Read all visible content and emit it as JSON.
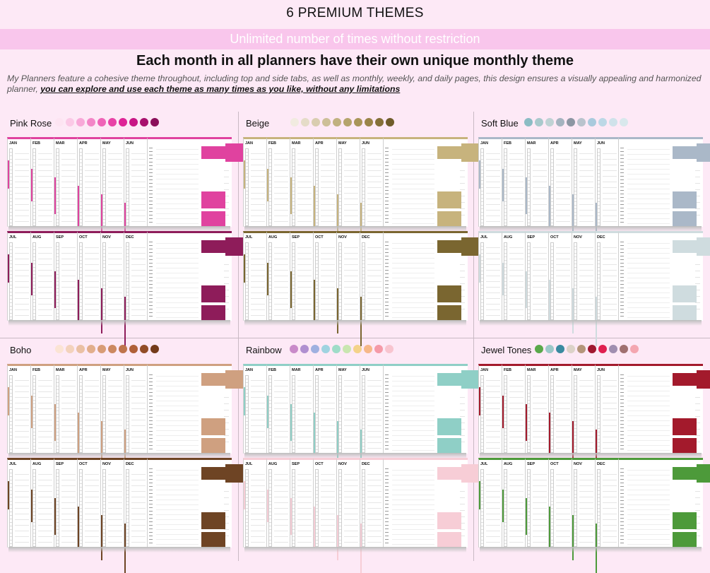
{
  "header": {
    "title": "6 PREMIUM THEMES",
    "banner": "Unlimited number of times without restriction",
    "headline": "Each month in all planners have their own unique monthly theme",
    "description": "My Planners feature a cohesive theme throughout, including top and side tabs, as well as monthly, weekly, and daily pages, this design ensures a visually appealing and harmonized planner,",
    "description_emphasis": "you can explore and use each theme as many times as you like, without any limitations"
  },
  "row_top_months": [
    "JAN",
    "FEB",
    "MAR",
    "APR",
    "MAY",
    "JUN"
  ],
  "row_bottom_months": [
    "JUL",
    "AUG",
    "SEP",
    "OCT",
    "NOV",
    "DEC"
  ],
  "themes": [
    {
      "name": "Pink Rose",
      "accent_top": "#e0429f",
      "accent_bottom": "#8e1c5a",
      "swatches": [
        "#fde4f2",
        "#fbc9e6",
        "#f8a8d8",
        "#f385c7",
        "#ef63b7",
        "#e842a6",
        "#de2396",
        "#c81585",
        "#a8106d",
        "#8a0e59"
      ]
    },
    {
      "name": "Beige",
      "accent_top": "#c7b37d",
      "accent_bottom": "#7a6630",
      "swatches": [
        "#f1ebe0",
        "#e5dcc8",
        "#d9cdb0",
        "#cdbf98",
        "#c1b180",
        "#b5a46c",
        "#a99558",
        "#9a8448",
        "#857038",
        "#6f5c2a"
      ]
    },
    {
      "name": "Soft Blue",
      "accent_top": "#aab8c8",
      "accent_bottom": "#cfdcdf",
      "swatches": [
        "#8bbcc4",
        "#a9c9cc",
        "#bfd2d4",
        "#a4b3bf",
        "#8c96a3",
        "#b9c3cd",
        "#a9cadd",
        "#bcd8e6",
        "#cfe2ea",
        "#d8e8ec"
      ]
    },
    {
      "name": "Boho",
      "accent_top": "#cfa080",
      "accent_bottom": "#6e4424",
      "swatches": [
        "#fbe4d4",
        "#f3d2bc",
        "#eac0a4",
        "#e2ae8c",
        "#d89c76",
        "#cc8860",
        "#bf744c",
        "#b06038",
        "#924c26",
        "#743a1a"
      ]
    },
    {
      "name": "Rainbow",
      "accent_top": "#8fcfc6",
      "accent_bottom": "#f7cdd6",
      "swatches": [
        "#c98ac9",
        "#b08fd0",
        "#9fb0e0",
        "#9fd3e0",
        "#9fdcc8",
        "#c9e6b0",
        "#f4d28a",
        "#f6b889",
        "#f59aa8",
        "#f8c4cf"
      ]
    },
    {
      "name": "Jewel Tones",
      "accent_top": "#a31a2c",
      "accent_bottom": "#4d9a3a",
      "swatches": [
        "#5aa84a",
        "#9cc8c8",
        "#3a8aa0",
        "#dcd2c8",
        "#b4957a",
        "#a01830",
        "#e02050",
        "#a08eb0",
        "#a07070",
        "#f4a6b0"
      ]
    }
  ]
}
